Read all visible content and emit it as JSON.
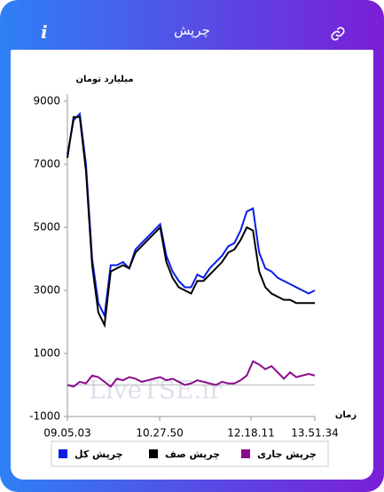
{
  "header": {
    "title": "چرپش"
  },
  "chart_data": {
    "type": "line",
    "y_label": "میلیارد تومان",
    "x_label": "زمان",
    "watermark": "LiveTSE.ir",
    "x": [
      0,
      2.5,
      5,
      7.5,
      10,
      12.5,
      15,
      17.5,
      20,
      22.5,
      25,
      27.5,
      30,
      32.5,
      35,
      37.5,
      40,
      42.5,
      45,
      47.5,
      50,
      52.5,
      55,
      57.5,
      60,
      62.5,
      65,
      67.5,
      70,
      72.5,
      75,
      77.5,
      80,
      82.5,
      85,
      87.5,
      90,
      92.5,
      95,
      97.5,
      100
    ],
    "xlim": [
      0,
      100
    ],
    "xticks": [
      {
        "value": 0,
        "label": "09.05.03"
      },
      {
        "value": 37.3,
        "label": "10.27.50"
      },
      {
        "value": 74.2,
        "label": "12.18.11"
      },
      {
        "value": 100,
        "label": "13.51.34"
      }
    ],
    "ylim": [
      -1000,
      9000
    ],
    "yticks": [
      -1000,
      1000,
      3000,
      5000,
      7000,
      9000
    ],
    "series": [
      {
        "name": "چرپش کل",
        "color": "#0a1ee8",
        "values": [
          7300,
          8400,
          8600,
          7000,
          4000,
          2600,
          2200,
          3800,
          3800,
          3900,
          3700,
          4300,
          4500,
          4700,
          4900,
          5100,
          4100,
          3600,
          3300,
          3100,
          3100,
          3500,
          3400,
          3700,
          3900,
          4100,
          4400,
          4500,
          4900,
          5500,
          5600,
          4200,
          3700,
          3600,
          3400,
          3300,
          3200,
          3100,
          3000,
          2900,
          3000
        ]
      },
      {
        "name": "چرپش صف",
        "color": "#000000",
        "values": [
          7200,
          8500,
          8500,
          6800,
          3800,
          2300,
          1900,
          3600,
          3700,
          3800,
          3700,
          4200,
          4400,
          4600,
          4800,
          5000,
          3900,
          3400,
          3100,
          3000,
          2900,
          3300,
          3300,
          3500,
          3700,
          3900,
          4200,
          4300,
          4600,
          5000,
          4900,
          3600,
          3100,
          2900,
          2800,
          2700,
          2700,
          2600,
          2600,
          2600,
          2600
        ]
      },
      {
        "name": "چرپش جاری",
        "color": "#8b0a8b",
        "values": [
          0,
          -50,
          100,
          50,
          300,
          250,
          100,
          -50,
          200,
          150,
          250,
          200,
          100,
          150,
          200,
          250,
          150,
          200,
          100,
          0,
          50,
          150,
          100,
          50,
          0,
          100,
          50,
          50,
          150,
          300,
          750,
          650,
          500,
          600,
          400,
          200,
          400,
          250,
          300,
          350,
          300
        ]
      }
    ]
  }
}
